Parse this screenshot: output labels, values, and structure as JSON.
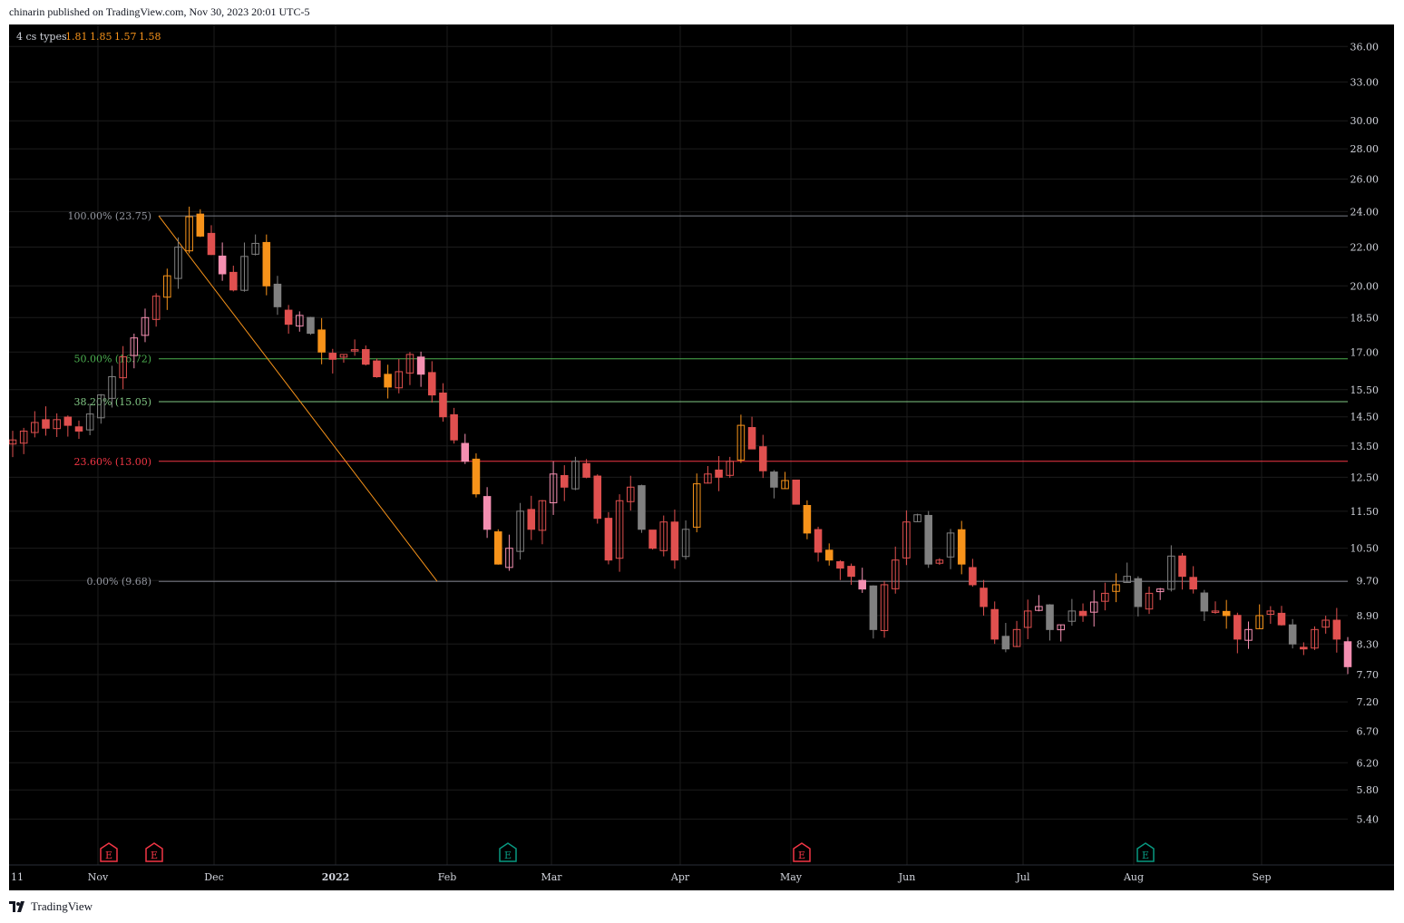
{
  "header": {
    "published_text": "chinarin published on TradingView.com, Nov 30, 2023 20:01 UTC-5"
  },
  "footer": {
    "brand": "TradingView",
    "logo_icon": "tradingview-logo-icon"
  },
  "indicator": {
    "name": "4 cs types",
    "values": [
      "1.81",
      "1.85",
      "1.57",
      "1.58"
    ]
  },
  "colors": {
    "background": "#000000",
    "grid": "#1c1c1c",
    "price_axis_text": "#d1d4dc",
    "up_candle": "#e0504f",
    "down_candle": "#e0504f",
    "orange_candle": "#f7931a",
    "pink_candle": "#f48fb1",
    "gray_candle": "#808080",
    "fib_line_100": "#787b86",
    "fib_line_50": "#4caf50",
    "fib_line_382": "#81c784",
    "fib_line_236": "#f23645",
    "fib_line_0": "#787b86",
    "trend_line": "#f7931a",
    "earnings_red": "#f23645",
    "earnings_teal": "#089981"
  },
  "chart_data": {
    "type": "candlestick",
    "title": "",
    "y_scale": "log",
    "ylim": [
      5.1,
      37.0
    ],
    "price_ticks": [
      "36.00",
      "33.00",
      "30.00",
      "28.00",
      "26.00",
      "24.00",
      "22.00",
      "20.00",
      "18.50",
      "17.00",
      "15.50",
      "14.50",
      "13.50",
      "12.50",
      "11.50",
      "10.50",
      "9.70",
      "8.90",
      "8.30",
      "7.70",
      "7.20",
      "6.70",
      "6.20",
      "5.80",
      "5.40"
    ],
    "time_labels": [
      {
        "label": "11",
        "bold": false
      },
      {
        "label": "Nov",
        "bold": false
      },
      {
        "label": "Dec",
        "bold": false
      },
      {
        "label": "2022",
        "bold": true
      },
      {
        "label": "Feb",
        "bold": false
      },
      {
        "label": "Mar",
        "bold": false
      },
      {
        "label": "Apr",
        "bold": false
      },
      {
        "label": "May",
        "bold": false
      },
      {
        "label": "Jun",
        "bold": false
      },
      {
        "label": "Jul",
        "bold": false
      },
      {
        "label": "Aug",
        "bold": false
      },
      {
        "label": "Sep",
        "bold": false
      }
    ],
    "fib_levels": [
      {
        "label": "100.00% (23.75)",
        "price": 23.75,
        "color": "#9598a1",
        "line": "#787b86"
      },
      {
        "label": "50.00% (16.72)",
        "price": 16.72,
        "color": "#4caf50",
        "line": "#4caf50"
      },
      {
        "label": "38.20% (15.05)",
        "price": 15.05,
        "color": "#81c784",
        "line": "#81c784"
      },
      {
        "label": "23.60% (13.00)",
        "price": 13.0,
        "color": "#f23645",
        "line": "#f23645"
      },
      {
        "label": "0.00% (9.68)",
        "price": 9.68,
        "color": "#9598a1",
        "line": "#787b86"
      }
    ],
    "fib_trend_line": {
      "from_price": 23.75,
      "to_price": 9.68
    },
    "earnings_markers": [
      {
        "label": "E",
        "color": "#f23645"
      },
      {
        "label": "E",
        "color": "#f23645"
      },
      {
        "label": "E",
        "color": "#089981"
      },
      {
        "label": "E",
        "color": "#f23645"
      },
      {
        "label": "E",
        "color": "#089981"
      }
    ],
    "price_path": [
      13.7,
      14.0,
      14.3,
      14.1,
      14.4,
      14.2,
      14.0,
      14.6,
      15.3,
      16.0,
      16.8,
      17.6,
      18.5,
      19.5,
      20.5,
      22.0,
      23.7,
      22.6,
      21.6,
      20.6,
      19.8,
      21.5,
      22.2,
      20.0,
      19.0,
      18.2,
      18.6,
      17.8,
      17.0,
      16.7,
      16.9,
      17.1,
      16.5,
      16.0,
      15.6,
      16.2,
      16.9,
      16.1,
      15.3,
      14.5,
      13.7,
      13.0,
      12.0,
      11.0,
      10.1,
      10.5,
      11.5,
      11.0,
      11.8,
      12.6,
      12.2,
      13.0,
      12.5,
      11.3,
      10.2,
      11.8,
      12.2,
      11.0,
      10.5,
      11.2,
      10.2,
      11.0,
      12.3,
      12.6,
      12.5,
      13.0,
      14.2,
      13.4,
      12.7,
      12.2,
      12.4,
      11.7,
      10.9,
      10.4,
      10.2,
      10.0,
      9.8,
      9.5,
      8.6,
      9.6,
      10.2,
      11.2,
      11.4,
      10.1,
      10.2,
      10.9,
      10.1,
      9.6,
      9.1,
      8.4,
      8.2,
      8.6,
      9.0,
      9.1,
      8.6,
      8.7,
      9.0,
      8.9,
      9.2,
      9.4,
      9.6,
      9.8,
      9.1,
      9.4,
      9.5,
      10.3,
      9.8,
      9.5,
      9.0,
      9.0,
      8.9,
      8.4,
      8.6,
      8.9,
      9.0,
      8.7,
      8.3,
      8.2,
      8.6,
      8.8,
      8.4,
      7.85
    ]
  }
}
